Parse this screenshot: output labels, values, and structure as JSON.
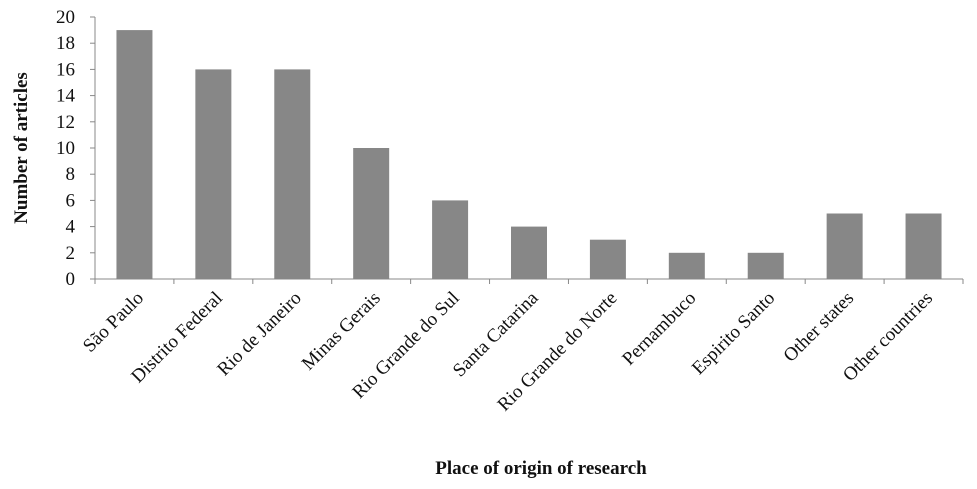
{
  "chart_data": {
    "type": "bar",
    "title": "",
    "xlabel": "Place of origin of research",
    "ylabel": "Number of articles",
    "categories": [
      "São Paulo",
      "Distrito Federal",
      "Rio de Janeiro",
      "Minas Gerais",
      "Rio Grande do Sul",
      "Santa Catarina",
      "Rio Grande do Norte",
      "Pernambuco",
      "Espirito Santo",
      "Other states",
      "Other countries"
    ],
    "values": [
      19,
      16,
      16,
      10,
      6,
      4,
      3,
      2,
      2,
      5,
      5
    ],
    "ylim": [
      0,
      20
    ],
    "yticks": [
      0,
      2,
      4,
      6,
      8,
      10,
      12,
      14,
      16,
      18,
      20
    ],
    "grid": false,
    "legend": "none",
    "colors": {
      "bar": "#878787",
      "axis": "#888888"
    }
  }
}
